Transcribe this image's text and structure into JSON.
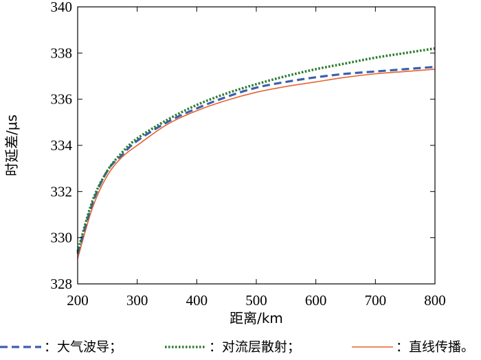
{
  "chart_data": {
    "type": "line",
    "xlabel": "距离/km",
    "ylabel": "时延差/μs",
    "xlim": [
      200,
      800
    ],
    "ylim": [
      328,
      340
    ],
    "xticks": [
      200,
      300,
      400,
      500,
      600,
      700,
      800
    ],
    "yticks": [
      328,
      330,
      332,
      334,
      336,
      338,
      340
    ],
    "grid": false,
    "legend_position": "bottom",
    "series": [
      {
        "name": "：大气波导；",
        "style": "dashed",
        "color": "#3a5fad",
        "x": [
          200,
          225,
          250,
          275,
          300,
          350,
          400,
          450,
          500,
          550,
          600,
          650,
          700,
          750,
          800
        ],
        "y": [
          329.3,
          331.5,
          332.9,
          333.6,
          334.2,
          335.0,
          335.6,
          336.1,
          336.5,
          336.75,
          336.95,
          337.1,
          337.2,
          337.3,
          337.4
        ]
      },
      {
        "name": "：对流层散射；",
        "style": "dotted",
        "color": "#2e7d32",
        "x": [
          200,
          225,
          250,
          275,
          300,
          350,
          400,
          450,
          500,
          550,
          600,
          650,
          700,
          750,
          800
        ],
        "y": [
          329.4,
          331.6,
          332.9,
          333.7,
          334.3,
          335.1,
          335.75,
          336.25,
          336.65,
          337.0,
          337.3,
          337.55,
          337.8,
          338.0,
          338.2
        ]
      },
      {
        "name": "：直线传播。",
        "style": "solid",
        "color": "#e8602c",
        "x": [
          200,
          225,
          250,
          275,
          300,
          350,
          400,
          450,
          500,
          550,
          600,
          650,
          700,
          750,
          800
        ],
        "y": [
          329.1,
          331.3,
          332.7,
          333.5,
          334.0,
          334.9,
          335.5,
          335.95,
          336.3,
          336.55,
          336.75,
          336.95,
          337.1,
          337.2,
          337.3
        ]
      }
    ]
  }
}
